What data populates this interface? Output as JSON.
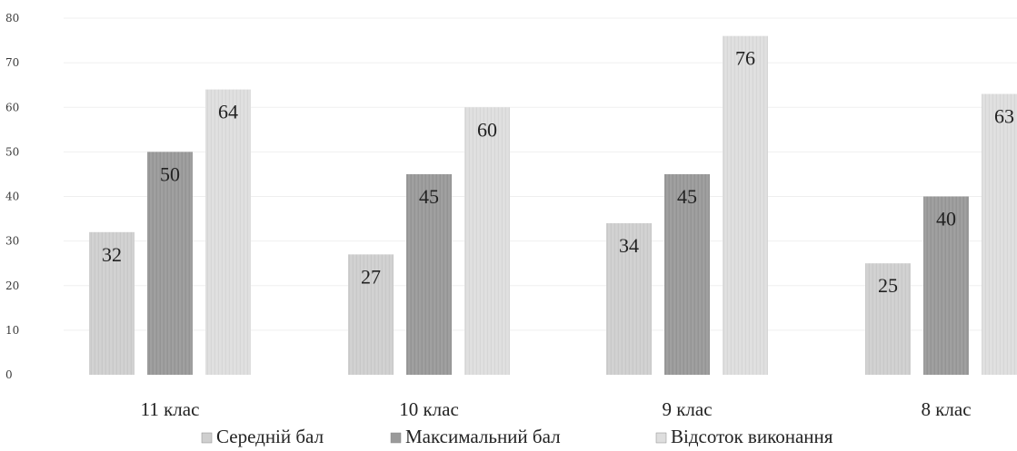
{
  "chart_data": {
    "type": "bar",
    "categories": [
      "11 клас",
      "10 клас",
      "9 клас",
      "8 клас"
    ],
    "series": [
      {
        "name": "Середній бал",
        "values": [
          32,
          27,
          34,
          25
        ]
      },
      {
        "name": "Максимальний бал",
        "values": [
          50,
          45,
          45,
          40
        ]
      },
      {
        "name": "Відсоток виконання",
        "values": [
          64,
          60,
          76,
          63
        ]
      }
    ],
    "ylim": [
      0,
      80
    ],
    "yticks": [
      0,
      10,
      20,
      30,
      40,
      50,
      60,
      70,
      80
    ],
    "legend": "bottom",
    "grid": true
  },
  "colors": {
    "series": [
      "#cfcfcf",
      "#9a9a9a",
      "#dedede"
    ],
    "grid": "#efefef"
  }
}
